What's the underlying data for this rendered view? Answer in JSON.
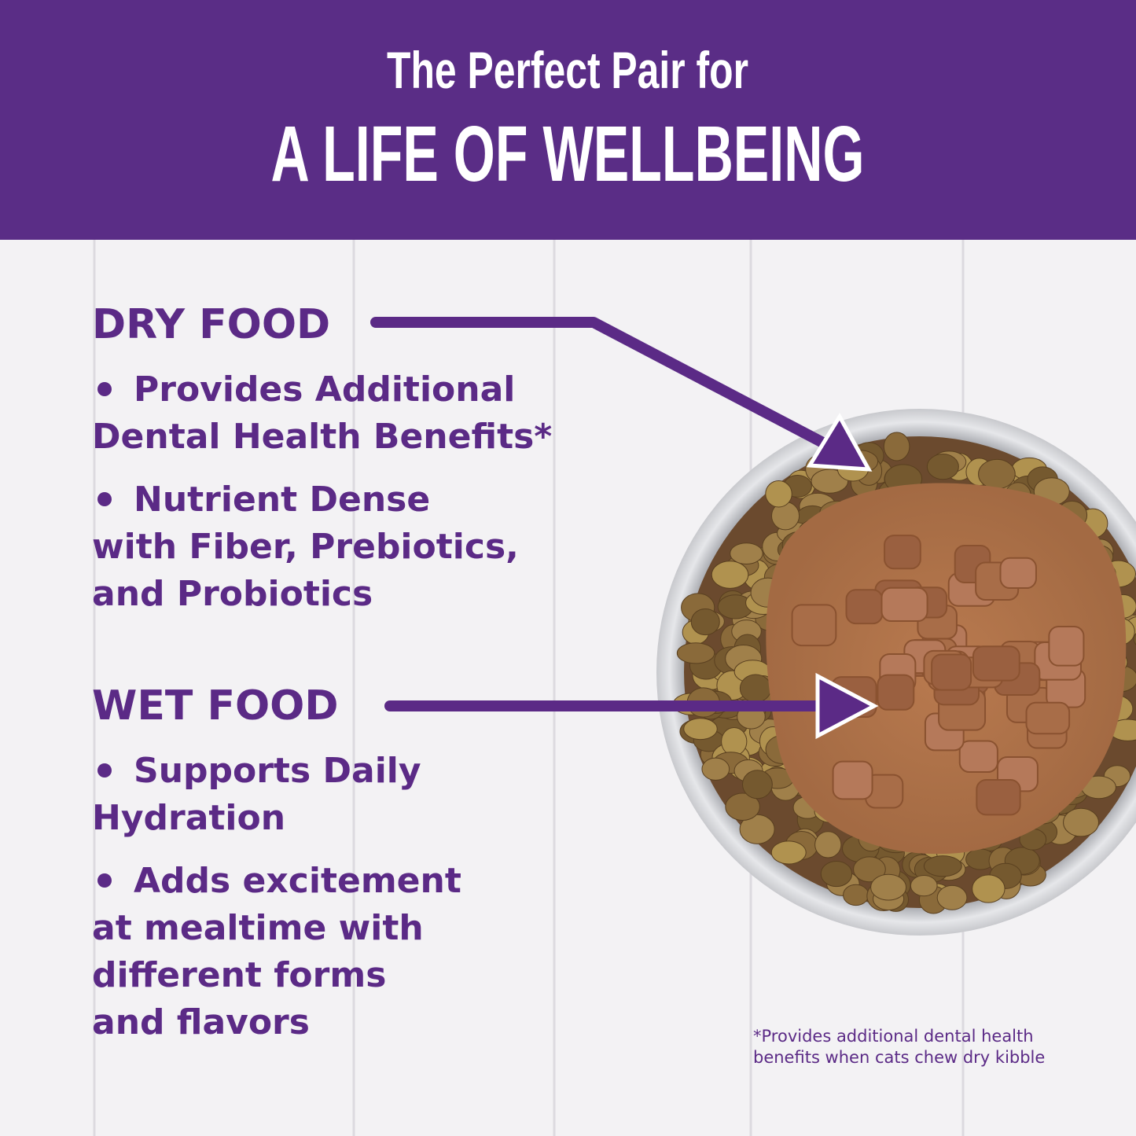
{
  "header": {
    "line1": "The Perfect Pair for",
    "line2": "A LIFE OF WELLBEING"
  },
  "sections": [
    {
      "heading": "DRY FOOD",
      "bullets": [
        [
          "Provides Additional",
          "Dental Health Benefits*"
        ],
        [
          "Nutrient Dense",
          "with Fiber, Prebiotics,",
          "and Probiotics"
        ]
      ]
    },
    {
      "heading": "WET FOOD",
      "bullets": [
        [
          "Supports Daily",
          "Hydration"
        ],
        [
          "Adds excitement",
          "at mealtime with",
          "different forms",
          "and flavors"
        ]
      ]
    }
  ],
  "footnote": [
    "*Provides additional dental health",
    "benefits when cats chew dry kibble"
  ]
}
